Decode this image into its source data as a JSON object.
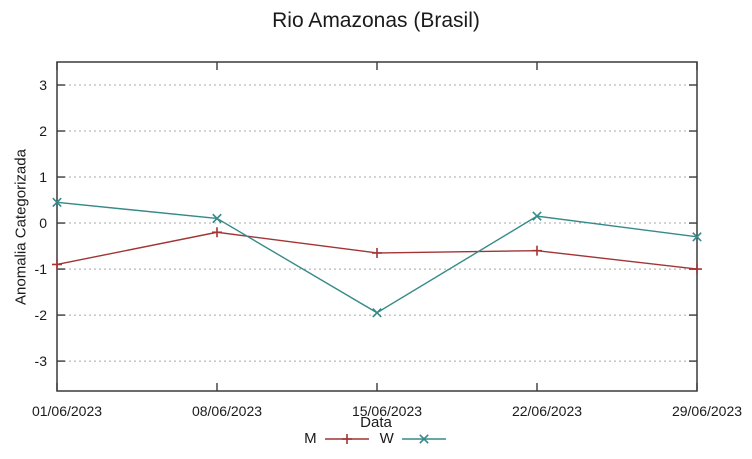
{
  "chart_data": {
    "type": "line",
    "title": "Rio Amazonas (Brasil)",
    "xlabel": "Data",
    "ylabel": "Anomalia Categorizada",
    "categories": [
      "01/06/2023",
      "08/06/2023",
      "15/06/2023",
      "22/06/2023",
      "29/06/2023"
    ],
    "yticks": [
      3,
      2,
      1,
      0,
      -1,
      -2,
      -3
    ],
    "ylim": [
      -3.65,
      3.5
    ],
    "grid": "horizontal dotted gridlines at integer y values",
    "legend_position": "below x-axis label, horizontal",
    "series": [
      {
        "name": "M",
        "marker": "plus",
        "color": "#a23434",
        "values": [
          -0.9,
          -0.2,
          -0.65,
          -0.6,
          -1.0
        ]
      },
      {
        "name": "W",
        "marker": "cross",
        "color": "#368a8a",
        "values": [
          0.45,
          0.1,
          -1.95,
          0.15,
          -0.3
        ]
      }
    ],
    "axis_colors": {
      "border": "#3a3a3a",
      "grid": "#a8a8a8",
      "text": "#1a1a1a"
    }
  }
}
